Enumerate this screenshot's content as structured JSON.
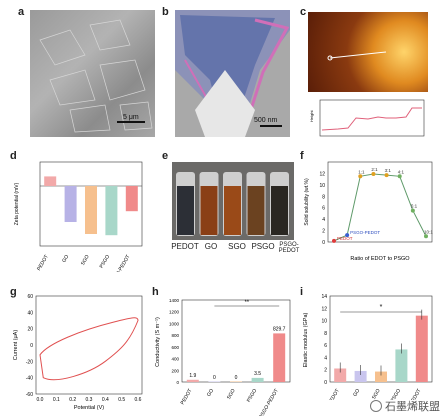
{
  "panels": {
    "a": {
      "label": "a",
      "scale": "5 μm"
    },
    "b": {
      "label": "b",
      "scale": "500 nm"
    },
    "c": {
      "label": "c",
      "ylabel": "Height"
    },
    "d": {
      "label": "d",
      "ylabel": "Zeta potential (mV)",
      "categories": [
        "PEDOT",
        "GO",
        "SGO",
        "PSGO",
        "PSGO-PEDOT"
      ],
      "values": [
        8,
        -30,
        -40,
        -41,
        -21
      ],
      "colors": [
        "#f2a9a9",
        "#b7b2e6",
        "#f6c08e",
        "#a8d7c9",
        "#f08a8a"
      ]
    },
    "e": {
      "label": "e",
      "vials": [
        "PEDOT",
        "GO",
        "SGO",
        "PSGO",
        "PSGO-PEDOT"
      ]
    },
    "f": {
      "label": "f",
      "xlabel": "Ratio of EDOT to PSGO",
      "ylabel": "Solid solubility (wt.%)",
      "points": [
        {
          "x": 0,
          "y": 0.2,
          "label": "PEDOT"
        },
        {
          "x": 1,
          "y": 1.2,
          "label": "PSGO-PEDOT"
        },
        {
          "x": 2,
          "y": 11.5,
          "label": "1:1"
        },
        {
          "x": 3,
          "y": 11.9,
          "label": "2:1"
        },
        {
          "x": 4,
          "y": 11.7,
          "label": "3:1"
        },
        {
          "x": 5,
          "y": 11.5,
          "label": "4:1"
        },
        {
          "x": 6,
          "y": 5.5,
          "label": "5:1"
        },
        {
          "x": 7,
          "y": 1.0,
          "label": "10:1"
        }
      ],
      "yticks": [
        "0",
        "2",
        "4",
        "6",
        "8",
        "10",
        "12"
      ]
    },
    "g": {
      "label": "g",
      "xlabel": "Potential (V)",
      "ylabel": "Current (μA)",
      "xticks": [
        "0.0",
        "0.1",
        "0.2",
        "0.3",
        "0.4",
        "0.5",
        "0.6"
      ],
      "yticks": [
        "-60",
        "-40",
        "-20",
        "0",
        "20",
        "40",
        "60"
      ]
    },
    "h": {
      "label": "h",
      "ylabel": "Conductivity (S m⁻¹)",
      "categories": [
        "PEDOT",
        "GO",
        "SGO",
        "PSGO",
        "PSGO-PEDOT"
      ],
      "values": [
        1.9,
        0,
        0,
        3.5,
        829.7
      ],
      "value_labels": [
        "1.9",
        "0",
        "0",
        "3.5",
        "829.7"
      ],
      "yticks": [
        "0",
        "200",
        "400",
        "600",
        "800",
        "1000",
        "1200",
        "1400"
      ],
      "sig": "**"
    },
    "i": {
      "label": "i",
      "ylabel": "Elastic modulus (GPa)",
      "categories": [
        "PEDOT",
        "GO",
        "SGO",
        "PSGO",
        "PSGO-PEDOT"
      ],
      "values": [
        2.2,
        1.8,
        1.7,
        5.3,
        10.8
      ],
      "yticks": [
        "0",
        "2",
        "4",
        "6",
        "8",
        "10",
        "12",
        "14"
      ],
      "sig": "*"
    }
  },
  "watermark": "石墨烯联盟",
  "chart_data": [
    {
      "type": "bar",
      "title": "",
      "categories": [
        "PEDOT",
        "GO",
        "SGO",
        "PSGO",
        "PSGO-PEDOT"
      ],
      "values": [
        8,
        -30,
        -40,
        -41,
        -21
      ],
      "ylabel": "Zeta potential (mV)",
      "ylim": [
        -50,
        20
      ]
    },
    {
      "type": "line",
      "categories": [
        "PEDOT",
        "PSGO-PEDOT",
        "1:1",
        "2:1",
        "3:1",
        "4:1",
        "5:1",
        "10:1"
      ],
      "values": [
        0.2,
        1.2,
        11.5,
        11.9,
        11.7,
        11.5,
        5.5,
        1.0
      ],
      "xlabel": "Ratio of EDOT to PSGO",
      "ylabel": "Solid solubility (wt.%)",
      "ylim": [
        0,
        14
      ]
    },
    {
      "type": "line",
      "xlabel": "Potential (V)",
      "ylabel": "Current (μA)",
      "xlim": [
        0,
        0.6
      ],
      "ylim": [
        -60,
        60
      ]
    },
    {
      "type": "bar",
      "categories": [
        "PEDOT",
        "GO",
        "SGO",
        "PSGO",
        "PSGO-PEDOT"
      ],
      "values": [
        1.9,
        0,
        0,
        3.5,
        829.7
      ],
      "ylabel": "Conductivity (S m⁻¹)",
      "ylim": [
        0,
        1400
      ]
    },
    {
      "type": "bar",
      "categories": [
        "PEDOT",
        "GO",
        "SGO",
        "PSGO",
        "PSGO-PEDOT"
      ],
      "values": [
        2.2,
        1.8,
        1.7,
        5.3,
        10.8
      ],
      "ylabel": "Elastic modulus (GPa)",
      "ylim": [
        0,
        14
      ]
    }
  ]
}
